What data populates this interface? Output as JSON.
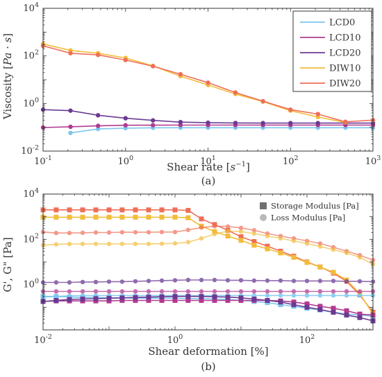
{
  "colors": {
    "LCD0": "#7cc6ee",
    "LCD10": "#b23a8f",
    "LCD20": "#6a3a93",
    "DIW10": "#f2bc3a",
    "DIW20": "#ef6e58",
    "axis": "#333333"
  },
  "chart_data": [
    {
      "type": "line",
      "caption": "(a)",
      "xlabel": "Shear rate [s^{-1}]",
      "ylabel": "Viscosity [Pa·s]",
      "xscale": "log",
      "yscale": "log",
      "xlim": [
        0.1,
        1000
      ],
      "ylim": [
        0.01,
        10000
      ],
      "x_ticks": [
        {
          "v": 0.1,
          "base": "10",
          "exp": "-1"
        },
        {
          "v": 1,
          "base": "10",
          "exp": "0"
        },
        {
          "v": 10,
          "base": "10",
          "exp": "1"
        },
        {
          "v": 100,
          "base": "10",
          "exp": "2"
        },
        {
          "v": 1000,
          "base": "10",
          "exp": "3"
        }
      ],
      "y_ticks": [
        {
          "v": 0.01,
          "base": "10",
          "exp": "-2"
        },
        {
          "v": 1,
          "base": "10",
          "exp": "0"
        },
        {
          "v": 100,
          "base": "10",
          "exp": "2"
        },
        {
          "v": 10000,
          "base": "10",
          "exp": "4"
        }
      ],
      "legend": {
        "position": "top-right",
        "entries": [
          "LCD0",
          "LCD10",
          "LCD20",
          "DIW10",
          "DIW20"
        ]
      },
      "series": [
        {
          "name": "LCD0",
          "x": [
            0.215,
            0.464,
            1,
            2.15,
            4.64,
            10,
            21.5,
            46.4,
            100,
            215,
            464,
            1000
          ],
          "y": [
            0.058,
            0.085,
            0.092,
            0.095,
            0.096,
            0.096,
            0.096,
            0.096,
            0.096,
            0.096,
            0.096,
            0.096
          ]
        },
        {
          "name": "LCD10",
          "x": [
            0.1,
            0.215,
            0.464,
            1,
            2.15,
            4.64,
            10,
            21.5,
            46.4,
            100,
            215,
            464,
            1000
          ],
          "y": [
            0.098,
            0.105,
            0.115,
            0.122,
            0.123,
            0.124,
            0.124,
            0.124,
            0.124,
            0.124,
            0.124,
            0.124,
            0.124
          ]
        },
        {
          "name": "LCD20",
          "x": [
            0.1,
            0.215,
            0.464,
            1,
            2.15,
            4.64,
            10,
            21.5,
            46.4,
            100,
            215,
            464,
            1000
          ],
          "y": [
            0.55,
            0.5,
            0.32,
            0.24,
            0.195,
            0.165,
            0.155,
            0.152,
            0.15,
            0.15,
            0.15,
            0.15,
            0.15
          ]
        },
        {
          "name": "DIW10",
          "x": [
            0.1,
            0.215,
            0.464,
            1,
            2.15,
            4.64,
            10,
            21.5,
            46.4,
            100,
            215,
            464
          ],
          "y": [
            320,
            170,
            130,
            82,
            38,
            14,
            6.0,
            2.5,
            1.2,
            0.5,
            0.27,
            0.16
          ]
        },
        {
          "name": "DIW20",
          "x": [
            0.1,
            0.215,
            0.464,
            1,
            2.15,
            4.64,
            10,
            21.5,
            46.4,
            100,
            215,
            464,
            1000
          ],
          "y": [
            265,
            130,
            110,
            67,
            37,
            17,
            7.5,
            2.9,
            1.25,
            0.55,
            0.36,
            0.17,
            0.2
          ]
        }
      ]
    },
    {
      "type": "line",
      "caption": "(b)",
      "xlabel": "Shear deformation [%]",
      "ylabel": "G', G\" [Pa]",
      "xscale": "log",
      "yscale": "log",
      "xlim": [
        0.01,
        1000
      ],
      "ylim": [
        0.01,
        10000
      ],
      "x_ticks": [
        {
          "v": 0.01,
          "base": "10",
          "exp": "-2"
        },
        {
          "v": 1,
          "base": "10",
          "exp": "0"
        },
        {
          "v": 100,
          "base": "10",
          "exp": "2"
        }
      ],
      "y_ticks": [
        {
          "v": 1,
          "base": "10",
          "exp": "0"
        },
        {
          "v": 100,
          "base": "10",
          "exp": "2"
        },
        {
          "v": 10000,
          "base": "10",
          "exp": "4"
        }
      ],
      "legend": {
        "position": "top-right",
        "entries": [
          "Storage Modulus [Pa]",
          "Loss Modulus [Pa]"
        ]
      },
      "series": [
        {
          "name": "DIW20 storage",
          "color_key": "DIW20",
          "marker": "square",
          "x": [
            0.01,
            0.0158,
            0.0251,
            0.0398,
            0.0631,
            0.1,
            0.158,
            0.251,
            0.398,
            0.631,
            1,
            1.58,
            2.51,
            3.98,
            6.31,
            10,
            15.8,
            25.1,
            39.8,
            63.1,
            100,
            158,
            251,
            398,
            631,
            1000
          ],
          "y": [
            2000,
            2000,
            2000,
            2000,
            2000,
            2000,
            2000,
            2000,
            2000,
            2000,
            2000,
            1900,
            800,
            450,
            250,
            130,
            80,
            50,
            30,
            18,
            10,
            6,
            3.2,
            1.4,
            0.35,
            0.06
          ]
        },
        {
          "name": "DIW10 storage",
          "color_key": "DIW10",
          "marker": "square",
          "x": [
            0.01,
            0.0158,
            0.0251,
            0.0398,
            0.0631,
            0.1,
            0.158,
            0.251,
            0.398,
            0.631,
            1,
            1.58,
            2.51,
            3.98,
            6.31,
            10,
            15.8,
            25.1,
            39.8,
            63.1,
            100,
            158,
            251,
            398,
            631,
            1000
          ],
          "y": [
            950,
            950,
            950,
            950,
            950,
            950,
            950,
            950,
            950,
            950,
            950,
            900,
            380,
            220,
            140,
            90,
            55,
            38,
            25,
            16,
            9.5,
            6,
            3.5,
            1.6,
            0.4,
            0.05
          ]
        },
        {
          "name": "DIW20 loss",
          "color_key": "DIW20",
          "marker": "circle",
          "alpha": 0.7,
          "x": [
            0.01,
            0.0158,
            0.0251,
            0.0398,
            0.0631,
            0.1,
            0.158,
            0.251,
            0.398,
            0.631,
            1,
            1.58,
            2.51,
            3.98,
            6.31,
            10,
            15.8,
            25.1,
            39.8,
            63.1,
            100,
            158,
            251,
            398,
            631,
            1000
          ],
          "y": [
            210,
            190,
            190,
            195,
            200,
            200,
            205,
            205,
            205,
            210,
            210,
            260,
            330,
            380,
            370,
            320,
            250,
            180,
            140,
            110,
            85,
            65,
            45,
            30,
            20,
            12
          ]
        },
        {
          "name": "DIW10 loss",
          "color_key": "DIW10",
          "marker": "circle",
          "alpha": 0.7,
          "x": [
            0.01,
            0.0158,
            0.0251,
            0.0398,
            0.0631,
            0.1,
            0.158,
            0.251,
            0.398,
            0.631,
            1,
            1.58,
            2.51,
            3.98,
            6.31,
            10,
            15.8,
            25.1,
            39.8,
            63.1,
            100,
            158,
            251,
            398,
            631,
            1000
          ],
          "y": [
            55,
            60,
            62,
            63,
            63,
            63,
            63,
            63,
            63,
            64,
            66,
            75,
            110,
            170,
            230,
            220,
            180,
            140,
            110,
            85,
            65,
            48,
            35,
            25,
            16,
            8
          ]
        },
        {
          "name": "LCD20 loss",
          "color_key": "LCD20",
          "marker": "circle",
          "alpha": 0.75,
          "x": [
            0.01,
            0.0158,
            0.0251,
            0.0398,
            0.0631,
            0.1,
            0.158,
            0.251,
            0.398,
            0.631,
            1,
            1.58,
            2.51,
            3.98,
            6.31,
            10,
            15.8,
            25.1,
            39.8,
            63.1,
            100,
            158,
            251,
            398,
            631,
            1000
          ],
          "y": [
            1.25,
            1.25,
            1.25,
            1.3,
            1.3,
            1.35,
            1.35,
            1.4,
            1.45,
            1.5,
            1.55,
            1.6,
            1.6,
            1.6,
            1.55,
            1.55,
            1.5,
            1.5,
            1.5,
            1.45,
            1.45,
            1.45,
            1.45,
            1.4,
            1.4,
            1.35
          ]
        },
        {
          "name": "LCD10 loss",
          "color_key": "LCD10",
          "marker": "circle",
          "alpha": 0.75,
          "x": [
            0.01,
            0.0158,
            0.0251,
            0.0398,
            0.0631,
            0.1,
            0.158,
            0.251,
            0.398,
            0.631,
            1,
            1.58,
            2.51,
            3.98,
            6.31,
            10,
            15.8,
            25.1,
            39.8,
            63.1,
            100,
            158,
            251,
            398,
            631,
            1000
          ],
          "y": [
            0.5,
            0.5,
            0.5,
            0.5,
            0.5,
            0.5,
            0.5,
            0.5,
            0.5,
            0.5,
            0.5,
            0.5,
            0.5,
            0.5,
            0.5,
            0.5,
            0.5,
            0.5,
            0.5,
            0.5,
            0.5,
            0.5,
            0.5,
            0.5,
            0.5,
            0.5
          ]
        },
        {
          "name": "LCD0 loss",
          "color_key": "LCD0",
          "marker": "circle",
          "alpha": 0.85,
          "x": [
            0.01,
            0.0158,
            0.0251,
            0.0398,
            0.0631,
            0.1,
            0.158,
            0.251,
            0.398,
            0.631,
            1,
            1.58,
            2.51,
            3.98,
            6.31,
            10,
            15.8,
            25.1,
            39.8,
            63.1,
            100,
            158,
            251,
            398,
            631,
            1000
          ],
          "y": [
            0.28,
            0.3,
            0.32,
            0.33,
            0.33,
            0.33,
            0.33,
            0.33,
            0.33,
            0.33,
            0.33,
            0.33,
            0.33,
            0.33,
            0.33,
            0.33,
            0.33,
            0.33,
            0.33,
            0.33,
            0.33,
            0.33,
            0.33,
            0.33,
            0.33,
            0.33
          ]
        },
        {
          "name": "LCD0 storage",
          "color_key": "LCD0",
          "marker": "square",
          "x": [
            0.01,
            0.0158,
            0.0251,
            0.0398,
            0.0631,
            0.1,
            0.158,
            0.251,
            0.398,
            0.631,
            1,
            1.58,
            2.51,
            3.98,
            6.31,
            10,
            15.8,
            25.1,
            39.8,
            63.1,
            100,
            158,
            251,
            398,
            631,
            1000
          ],
          "y": [
            0.3,
            0.3,
            0.28,
            0.27,
            0.27,
            0.26,
            0.26,
            0.25,
            0.25,
            0.25,
            0.25,
            0.24,
            0.24,
            0.23,
            0.22,
            0.2,
            0.18,
            0.16,
            0.13,
            0.11,
            0.09,
            0.075,
            0.06,
            0.05,
            0.045,
            0.04
          ]
        },
        {
          "name": "LCD10 storage",
          "color_key": "LCD10",
          "marker": "square",
          "x": [
            0.01,
            0.0158,
            0.0251,
            0.0398,
            0.0631,
            0.1,
            0.158,
            0.251,
            0.398,
            0.631,
            1,
            1.58,
            2.51,
            3.98,
            6.31,
            10,
            15.8,
            25.1,
            39.8,
            63.1,
            100,
            158,
            251,
            398,
            631,
            1000
          ],
          "y": [
            0.18,
            0.19,
            0.19,
            0.19,
            0.19,
            0.19,
            0.2,
            0.2,
            0.2,
            0.2,
            0.2,
            0.2,
            0.2,
            0.2,
            0.2,
            0.2,
            0.2,
            0.2,
            0.19,
            0.17,
            0.14,
            0.11,
            0.09,
            0.07,
            0.05,
            0.045
          ]
        },
        {
          "name": "LCD20 storage",
          "color_key": "LCD20",
          "marker": "square",
          "x": [
            0.01,
            0.0158,
            0.0251,
            0.0398,
            0.0631,
            0.1,
            0.158,
            0.251,
            0.398,
            0.631,
            1,
            1.58,
            2.51,
            3.98,
            6.31,
            10,
            15.8,
            25.1,
            39.8,
            63.1,
            100,
            158,
            251,
            398,
            631,
            1000
          ],
          "y": [
            0.18,
            0.2,
            0.22,
            0.23,
            0.24,
            0.25,
            0.26,
            0.27,
            0.28,
            0.29,
            0.3,
            0.3,
            0.3,
            0.29,
            0.28,
            0.26,
            0.23,
            0.2,
            0.17,
            0.13,
            0.1,
            0.08,
            0.06,
            0.045,
            0.035,
            0.025
          ]
        }
      ]
    }
  ]
}
